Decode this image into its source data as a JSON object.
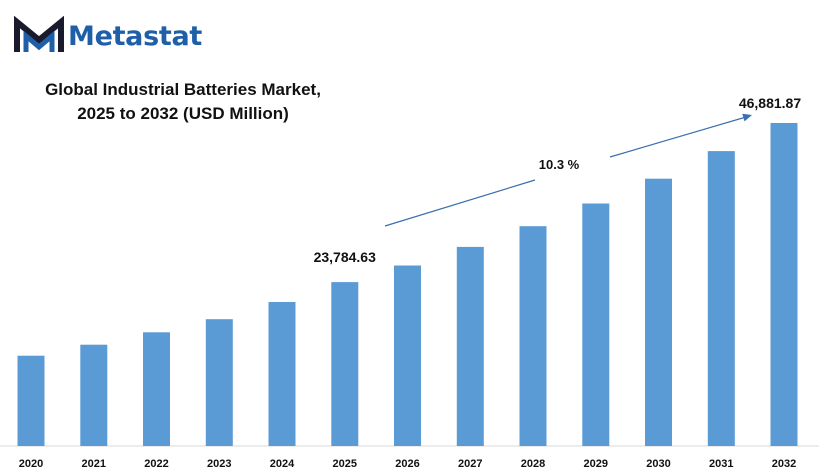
{
  "brand": {
    "name": "Metastat",
    "logo_icon": "metastat-m-logo-icon",
    "color": "#1f5fa8"
  },
  "chart_data": {
    "type": "bar",
    "title_lines": [
      "Global Industrial Batteries Market,",
      "2025 to 2032 (USD Million)"
    ],
    "categories": [
      "2020",
      "2021",
      "2022",
      "2023",
      "2024",
      "2025",
      "2026",
      "2027",
      "2028",
      "2029",
      "2030",
      "2031",
      "2032"
    ],
    "values": [
      13100,
      14700,
      16500,
      18400,
      20900,
      23784.63,
      26200,
      28900,
      31900,
      35200,
      38800,
      42800,
      46881.87
    ],
    "ylim": [
      0,
      52000
    ],
    "grid": false,
    "bar_color": "#5b9bd5",
    "annotations": {
      "start_label": "23,784.63",
      "end_label": "46,881.87",
      "cagr_label": "10.3 %"
    }
  }
}
